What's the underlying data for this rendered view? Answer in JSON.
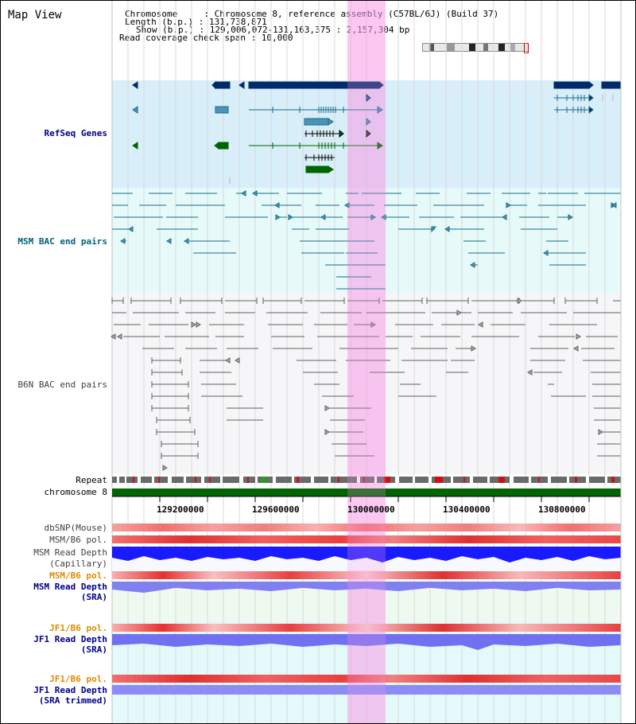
{
  "header": {
    "view_title": "Map View",
    "chromosome_line": "Chromosome     : Chromosome 8, reference assembly (C57BL/6J) (Build 37)",
    "length_line": "Length (b.p.) : 131,738,871",
    "show_line": "Show (b.p.) : 129,006,072-131,163,375 : 2,157,304 bp",
    "coverage_line": "Read coverage check span : 10,000"
  },
  "tracks": {
    "refseq": "RefSeq Genes",
    "msm_bac": "MSM BAC end pairs",
    "b6n_bac": "B6N BAC end pairs",
    "repeat": "Repeat",
    "chromosome": "chromosome 8",
    "dbsnp": "dbSNP(Mouse)",
    "msm_b6_pol": "MSM/B6 pol.",
    "msm_read_depth": "MSM Read Depth",
    "capillary": "(Capillary)",
    "msm_b6_pol_sra": "MSM/B6 pol.",
    "msm_read_depth_sra": "MSM Read Depth",
    "sra": "(SRA)",
    "jf1_b6_pol": "JF1/B6 pol.",
    "jf1_read_depth": "JF1 Read Depth",
    "jf1_sra": "(SRA)",
    "jf1_b6_pol2": "JF1/B6 pol.",
    "jf1_read_depth2": "JF1 Read Depth",
    "jf1_sra_trimmed": "(SRA trimmed)"
  },
  "axis": {
    "ticks": [
      "129200000",
      "129600000",
      "130000000",
      "130400000",
      "130800000"
    ]
  },
  "colors": {
    "highlight": "#f8d0f0",
    "refseq_bg": "#d8eef8",
    "msm_bg": "#e6fafa",
    "gene_dark": "#002a6a",
    "gene_green": "#006400",
    "msm_line": "#1a6b8a",
    "b6n_line": "#606060",
    "chromosome_bar": "#006400"
  }
}
